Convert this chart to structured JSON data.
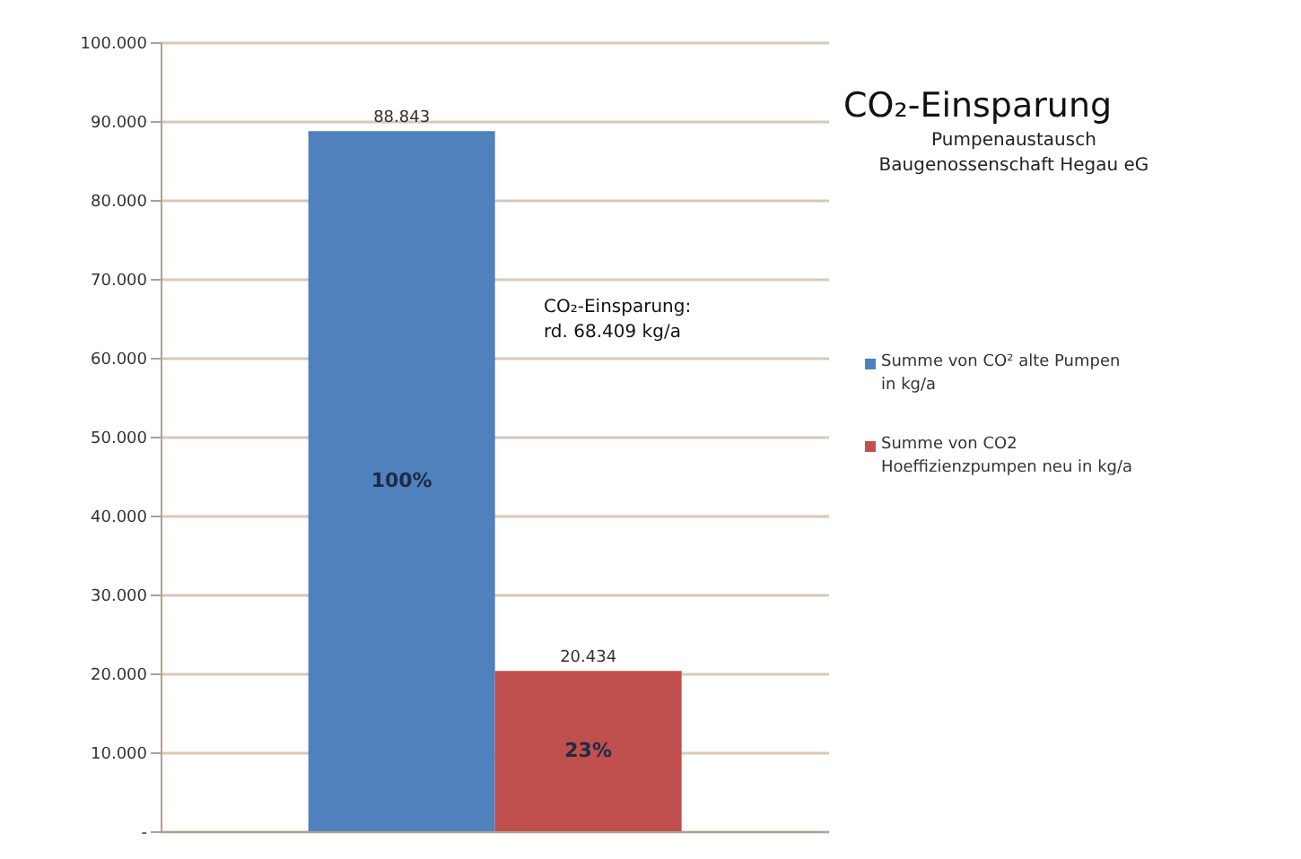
{
  "chart_data": {
    "type": "bar",
    "title": "CO₂-Einsparung",
    "subtitle": "Pumpenaustausch Baugenossenschaft Hegau eG",
    "categories": [
      null
    ],
    "series": [
      {
        "name": "Summe von CO² alte Pumpen in kg/a",
        "color": "#4f81bd",
        "values": [
          88843
        ],
        "value_labels": [
          "88.843"
        ]
      },
      {
        "name": "Summe von CO2 Hoeffizienzpumpen neu in kg/a",
        "color": "#c0504d",
        "values": [
          20434
        ],
        "value_labels": [
          "20.434"
        ]
      }
    ],
    "ylim": [
      0,
      100000
    ],
    "yticks": [
      {
        "value": 0,
        "label": "-"
      },
      {
        "value": 10000,
        "label": "10.000"
      },
      {
        "value": 20000,
        "label": "20.000"
      },
      {
        "value": 30000,
        "label": "30.000"
      },
      {
        "value": 40000,
        "label": "40.000"
      },
      {
        "value": 50000,
        "label": "50.000"
      },
      {
        "value": 60000,
        "label": "60.000"
      },
      {
        "value": 70000,
        "label": "70.000"
      },
      {
        "value": 80000,
        "label": "80.000"
      },
      {
        "value": 90000,
        "label": "90.000"
      },
      {
        "value": 100000,
        "label": "100.000"
      }
    ],
    "annotations": [
      "100%",
      "23%",
      "CO₂-Einsparung: rd. 68.409 kg/a"
    ],
    "grid": "y",
    "legend": "right"
  }
}
